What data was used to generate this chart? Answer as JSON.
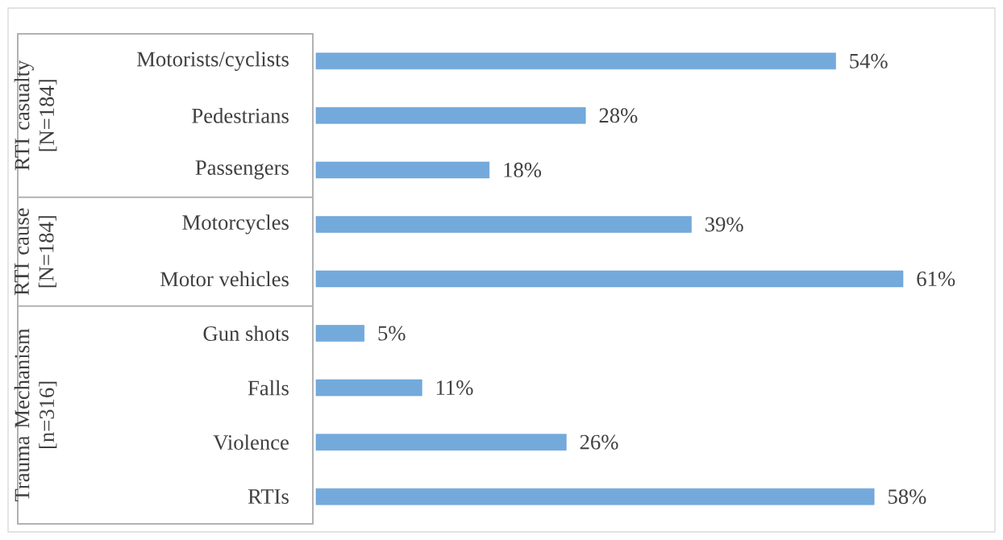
{
  "chart_data": {
    "type": "bar",
    "orientation": "horizontal",
    "categories": [
      "Motorists/cyclists",
      "Pedestrians",
      "Passengers",
      "Motorcycles",
      "Motor vehicles",
      "Gun shots",
      "Falls",
      "Violence",
      "RTIs"
    ],
    "values": [
      54,
      28,
      18,
      39,
      61,
      5,
      11,
      26,
      58
    ],
    "value_labels": [
      "54%",
      "28%",
      "18%",
      "39%",
      "61%",
      "5%",
      "11%",
      "26%",
      "58%"
    ],
    "color": "#5b9bd5",
    "tick_labels": "y",
    "annotations": [
      "RTI casualty [N=184]",
      "RTI cause [N=184]",
      "Trauma Mechanism [n=316]"
    ]
  }
}
